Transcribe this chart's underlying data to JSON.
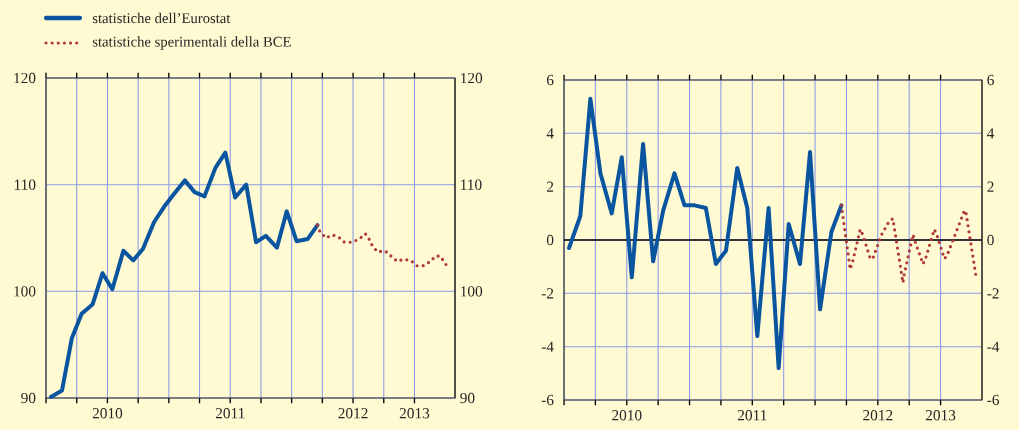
{
  "chart_data": [
    {
      "type": "line",
      "legend": "top left",
      "grid": true,
      "xlim": [
        2010,
        2013.33
      ],
      "ylim": [
        90,
        120
      ],
      "yticks": [
        90,
        100,
        110,
        120
      ],
      "y2lim": [
        90,
        120
      ],
      "y2ticks": [
        90,
        100,
        110,
        120
      ],
      "xticks": [
        {
          "value": 2010,
          "label": null
        },
        {
          "value": 2010.25,
          "label": null
        },
        {
          "value": 2010.5,
          "label": "2010"
        },
        {
          "value": 2010.75,
          "label": null
        },
        {
          "value": 2011,
          "label": null
        },
        {
          "value": 2011.25,
          "label": null
        },
        {
          "value": 2011.5,
          "label": "2011"
        },
        {
          "value": 2011.75,
          "label": null
        },
        {
          "value": 2012,
          "label": null
        },
        {
          "value": 2012.25,
          "label": null
        },
        {
          "value": 2012.5,
          "label": "2012"
        },
        {
          "value": 2012.75,
          "label": null
        },
        {
          "value": 2013,
          "label": "2013"
        }
      ],
      "series": [
        {
          "name": "statistiche dell’Eurostat",
          "color": "#0a55a0",
          "line_style": "solid",
          "x": [
            2010.04,
            2010.13,
            2010.21,
            2010.29,
            2010.38,
            2010.46,
            2010.54,
            2010.63,
            2010.71,
            2010.79,
            2010.88,
            2010.96,
            2011.04,
            2011.13,
            2011.21,
            2011.29,
            2011.38,
            2011.46,
            2011.54,
            2011.63,
            2011.71,
            2011.79,
            2011.88,
            2011.96,
            2012.04,
            2012.13,
            2012.21
          ],
          "values": [
            90.1,
            90.7,
            95.6,
            97.9,
            98.8,
            101.7,
            100.2,
            103.8,
            102.9,
            104.0,
            106.5,
            107.9,
            109.1,
            110.4,
            109.3,
            108.9,
            111.6,
            113.0,
            108.8,
            110.0,
            104.6,
            105.2,
            104.1,
            107.5,
            104.7,
            104.9,
            106.2
          ]
        },
        {
          "name": "statistiche sperimentali della BCE",
          "color": "#b03a3a",
          "line_style": "dotted",
          "x": [
            2012.21,
            2012.23,
            2012.28,
            2012.33,
            2012.38,
            2012.43,
            2012.49,
            2012.55,
            2012.6,
            2012.63,
            2012.66,
            2012.7,
            2012.76,
            2012.81,
            2012.86,
            2012.91,
            2012.97,
            2013.02,
            2013.07,
            2013.13,
            2013.17,
            2013.21,
            2013.24,
            2013.28
          ],
          "values": [
            106.2,
            105.6,
            105.0,
            105.3,
            105.1,
            104.6,
            104.6,
            104.9,
            105.4,
            104.9,
            104.2,
            103.7,
            103.8,
            103.3,
            102.8,
            103.0,
            102.9,
            102.4,
            102.4,
            102.8,
            103.3,
            103.3,
            102.8,
            102.1
          ]
        }
      ]
    },
    {
      "type": "line",
      "grid": true,
      "xlim": [
        2010,
        2013.33
      ],
      "ylim": [
        -6,
        6
      ],
      "yticks": [
        -6,
        -4,
        -2,
        0,
        2,
        4,
        6
      ],
      "y2lim": [
        -6,
        6
      ],
      "y2ticks": [
        -6,
        -4,
        -2,
        0,
        2,
        4,
        6
      ],
      "xticks": [
        {
          "value": 2010,
          "label": null
        },
        {
          "value": 2010.25,
          "label": null
        },
        {
          "value": 2010.5,
          "label": "2010"
        },
        {
          "value": 2010.75,
          "label": null
        },
        {
          "value": 2011,
          "label": null
        },
        {
          "value": 2011.25,
          "label": null
        },
        {
          "value": 2011.5,
          "label": "2011"
        },
        {
          "value": 2011.75,
          "label": null
        },
        {
          "value": 2012,
          "label": null
        },
        {
          "value": 2012.25,
          "label": null
        },
        {
          "value": 2012.5,
          "label": "2012"
        },
        {
          "value": 2012.75,
          "label": null
        },
        {
          "value": 2013,
          "label": "2013"
        }
      ],
      "ref_lines": [
        {
          "axis": "y",
          "value": 0,
          "color": "#000000"
        }
      ],
      "series": [
        {
          "color": "#0a55a0",
          "line_style": "solid",
          "x": [
            2010.04,
            2010.13,
            2010.21,
            2010.29,
            2010.38,
            2010.46,
            2010.54,
            2010.63,
            2010.71,
            2010.79,
            2010.88,
            2010.96,
            2011.04,
            2011.13,
            2011.21,
            2011.29,
            2011.38,
            2011.46,
            2011.54,
            2011.63,
            2011.71,
            2011.79,
            2011.88,
            2011.96,
            2012.04,
            2012.13,
            2012.21
          ],
          "values": [
            -0.3,
            0.9,
            5.3,
            2.5,
            1.0,
            3.1,
            -1.4,
            3.6,
            -0.8,
            1.1,
            2.5,
            1.3,
            1.3,
            1.2,
            -0.9,
            -0.4,
            2.7,
            1.2,
            -3.6,
            1.2,
            -4.8,
            0.6,
            -0.9,
            3.3,
            -2.6,
            0.3,
            1.3
          ]
        },
        {
          "color": "#b03a3a",
          "line_style": "dotted",
          "x": [
            2012.21,
            2012.28,
            2012.3,
            2012.36,
            2012.38,
            2012.44,
            2012.46,
            2012.53,
            2012.59,
            2012.62,
            2012.7,
            2012.71,
            2012.78,
            2012.8,
            2012.86,
            2012.88,
            2012.95,
            2012.97,
            2013.03,
            2013.05,
            2013.19,
            2013.2,
            2013.28
          ],
          "values": [
            1.3,
            -1.1,
            -0.8,
            0.4,
            0.2,
            -0.7,
            -0.7,
            0.2,
            0.7,
            0.8,
            -1.6,
            -1.3,
            0.2,
            -0.1,
            -0.9,
            -0.7,
            0.4,
            0.2,
            -0.7,
            -0.6,
            1.1,
            1.1,
            -1.3
          ]
        }
      ]
    }
  ]
}
